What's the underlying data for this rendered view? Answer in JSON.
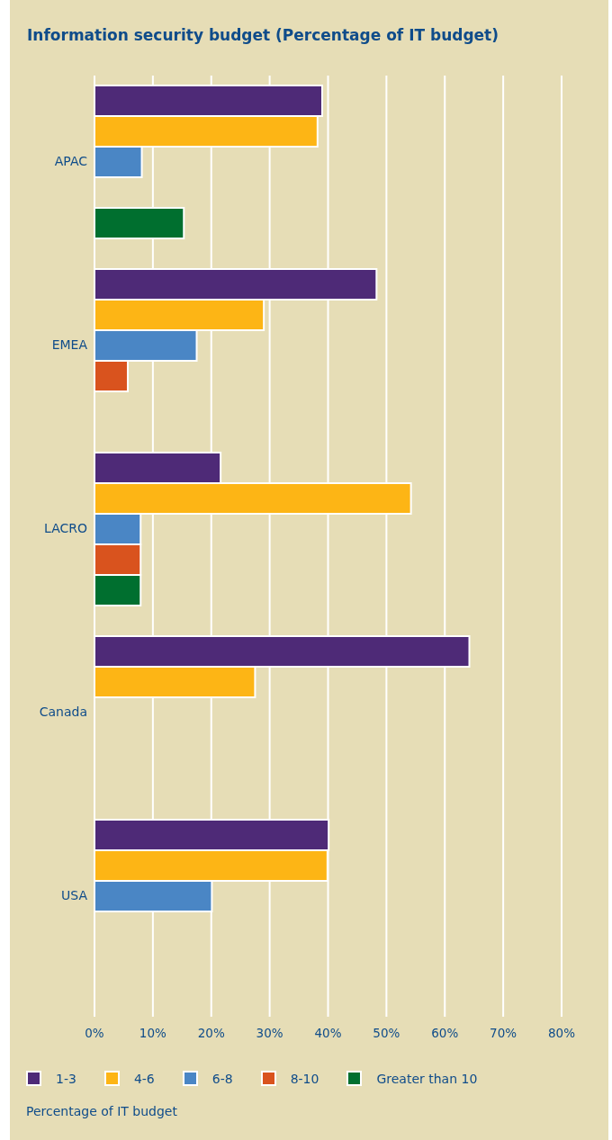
{
  "chart_data": {
    "type": "bar",
    "orientation": "horizontal",
    "title": "Information security budget (Percentage of IT budget)",
    "legend_title": "Percentage of IT budget",
    "categories": [
      "APAC",
      "EMEA",
      "LACRO",
      "Canada",
      "USA"
    ],
    "series": [
      {
        "name": "1-3",
        "color": "#4e2a77",
        "values": [
          39.0,
          48.3,
          21.6,
          64.2,
          40.1
        ]
      },
      {
        "name": "4-6",
        "color": "#fdb515",
        "values": [
          38.2,
          29.0,
          54.2,
          27.5,
          39.9
        ]
      },
      {
        "name": "6-8",
        "color": "#4a86c5",
        "values": [
          8.1,
          17.5,
          7.9,
          null,
          20.1
        ]
      },
      {
        "name": "8-10",
        "color": "#d9531e",
        "values": [
          null,
          5.7,
          7.9,
          null,
          null
        ]
      },
      {
        "name": "Greater than 10",
        "color": "#006f2f",
        "values": [
          15.3,
          null,
          7.9,
          null,
          null
        ]
      }
    ],
    "xlim": [
      0,
      80
    ],
    "xticks": [
      {
        "value": 0,
        "label": "0%"
      },
      {
        "value": 10,
        "label": "10%"
      },
      {
        "value": 20,
        "label": "20%"
      },
      {
        "value": 30,
        "label": "30%"
      },
      {
        "value": 40,
        "label": "40%"
      },
      {
        "value": 50,
        "label": "50%"
      },
      {
        "value": 60,
        "label": "60%"
      },
      {
        "value": 70,
        "label": "70%"
      },
      {
        "value": 80,
        "label": "80%"
      }
    ],
    "grid": "x",
    "legend": "bottom"
  }
}
